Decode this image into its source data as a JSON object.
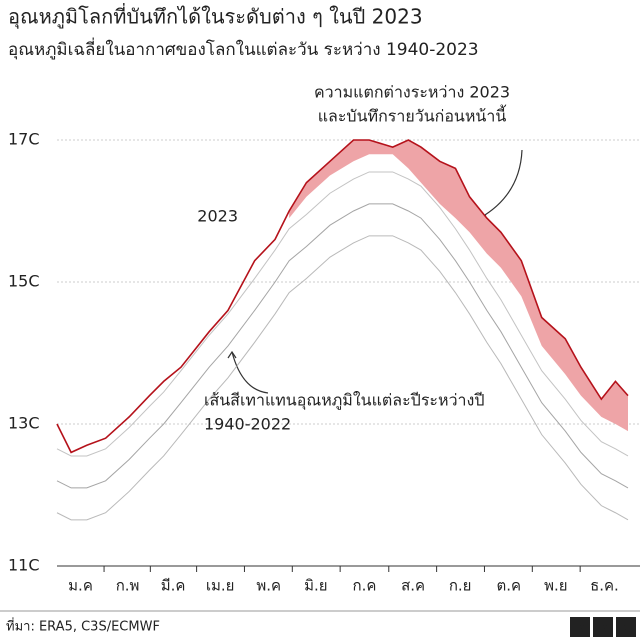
{
  "chart_data": {
    "type": "line",
    "title": "อุณหภูมิโลกที่บันทึกได้ในระดับต่าง ๆ ในปี 2023",
    "subtitle": "อุณหภูมิเฉลี่ยในอากาศของโลกในแต่ละวัน ระหว่าง 1940-2023",
    "x": [
      1,
      10,
      20,
      32,
      47,
      60,
      69,
      80,
      98,
      110,
      127,
      140,
      149,
      160,
      175,
      190,
      200,
      215,
      225,
      233,
      245,
      255,
      264,
      275,
      284,
      297,
      310,
      325,
      335,
      348,
      357,
      365
    ],
    "xlim": [
      1,
      365
    ],
    "xticks": [
      {
        "value": 16,
        "label": "ม.ค"
      },
      {
        "value": 46,
        "label": "ก.พ"
      },
      {
        "value": 75,
        "label": "มี.ค"
      },
      {
        "value": 105,
        "label": "เม.ย"
      },
      {
        "value": 136,
        "label": "พ.ค"
      },
      {
        "value": 166,
        "label": "มิ.ย"
      },
      {
        "value": 197,
        "label": "ก.ค"
      },
      {
        "value": 228,
        "label": "ส.ค"
      },
      {
        "value": 258,
        "label": "ก.ย"
      },
      {
        "value": 289,
        "label": "ต.ค"
      },
      {
        "value": 319,
        "label": "พ.ย"
      },
      {
        "value": 350,
        "label": "ธ.ค."
      }
    ],
    "ylim": [
      11,
      17.6
    ],
    "yticks": [
      {
        "value": 11,
        "label": "11C"
      },
      {
        "value": 13,
        "label": "13C"
      },
      {
        "value": 15,
        "label": "15C"
      },
      {
        "value": 17,
        "label": "17C"
      }
    ],
    "grid": true,
    "series": [
      {
        "color": "#a8a8a8",
        "values": [
          11.75,
          11.65,
          11.65,
          11.75,
          12.05,
          12.35,
          12.55,
          12.85,
          13.35,
          13.65,
          14.15,
          14.55,
          14.85,
          15.05,
          15.35,
          15.55,
          15.65,
          15.65,
          15.55,
          15.45,
          15.15,
          14.85,
          14.55,
          14.15,
          13.85,
          13.35,
          12.85,
          12.45,
          12.15,
          11.85,
          11.75,
          11.65
        ]
      },
      {
        "color": "#8e8e8e",
        "values": [
          12.2,
          12.1,
          12.1,
          12.2,
          12.5,
          12.8,
          13.0,
          13.3,
          13.8,
          14.1,
          14.6,
          15.0,
          15.3,
          15.5,
          15.8,
          16.0,
          16.1,
          16.1,
          16.0,
          15.9,
          15.6,
          15.3,
          15.0,
          14.6,
          14.3,
          13.8,
          13.3,
          12.9,
          12.6,
          12.3,
          12.2,
          12.1
        ]
      },
      {
        "color": "#b4b4b4",
        "values": [
          12.65,
          12.55,
          12.55,
          12.65,
          12.95,
          13.25,
          13.45,
          13.75,
          14.25,
          14.55,
          15.05,
          15.45,
          15.75,
          15.95,
          16.25,
          16.45,
          16.55,
          16.55,
          16.45,
          16.35,
          16.05,
          15.75,
          15.45,
          15.05,
          14.75,
          14.25,
          13.75,
          13.35,
          13.05,
          12.75,
          12.65,
          12.55
        ]
      },
      {
        "name": "2023",
        "color": "#b5121b",
        "values": [
          13.0,
          12.6,
          12.7,
          12.8,
          13.1,
          13.4,
          13.6,
          13.8,
          14.3,
          14.6,
          15.3,
          15.6,
          16.0,
          16.4,
          16.7,
          17.0,
          17.0,
          16.9,
          17.0,
          16.9,
          16.7,
          16.6,
          16.2,
          15.9,
          15.7,
          15.3,
          14.5,
          14.2,
          13.8,
          13.35,
          13.6,
          13.4
        ]
      },
      {
        "color": "#eea4a7",
        "band_with": 3,
        "values": [
          null,
          null,
          null,
          null,
          null,
          null,
          null,
          null,
          null,
          null,
          null,
          null,
          15.9,
          16.2,
          16.5,
          16.7,
          16.8,
          16.8,
          16.6,
          16.4,
          16.1,
          15.9,
          15.7,
          15.4,
          15.2,
          14.8,
          14.1,
          13.7,
          13.4,
          13.1,
          13.0,
          12.9
        ]
      }
    ],
    "annotations": [
      {
        "text": "ความแตกต่างระหว่าง 2023",
        "color": "#b5121b"
      },
      {
        "text": "และบันทึกรายวันก่อนหน้านี้",
        "color": "#b5121b"
      },
      {
        "text": "เส้นสีเทาแทนอุณหภูมิในแต่ละปีระหว่างปี",
        "color": "#222222"
      },
      {
        "text": "1940-2022",
        "color": "#222222"
      }
    ]
  },
  "source": "ที่มา: ERA5, C3S/ECMWF",
  "logo": [
    "B",
    "B",
    "C"
  ]
}
